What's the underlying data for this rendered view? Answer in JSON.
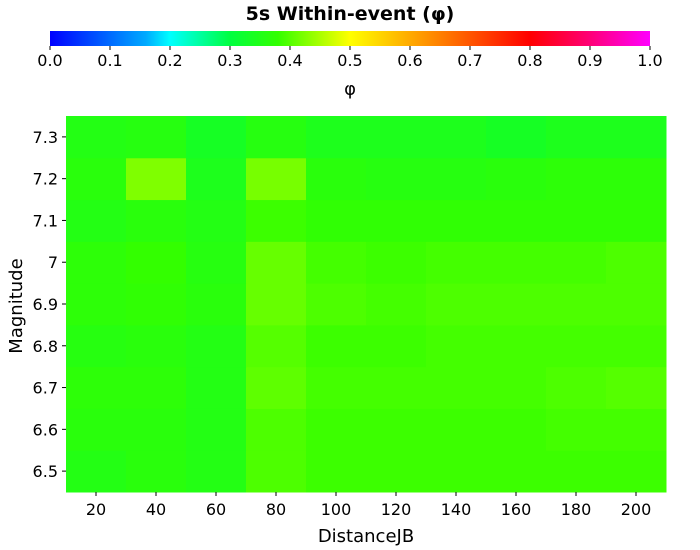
{
  "chart_data": {
    "type": "heatmap",
    "title": "5s Within-event (φ)",
    "xlabel": "DistanceJB",
    "ylabel": "Magnitude",
    "x_ticks": [
      "20",
      "40",
      "60",
      "80",
      "100",
      "120",
      "140",
      "160",
      "180",
      "200"
    ],
    "y_ticks": [
      "6.5",
      "6.6",
      "6.7",
      "6.8",
      "6.9",
      "7",
      "7.1",
      "7.2",
      "7.3"
    ],
    "x_range": [
      10,
      210
    ],
    "y_range": [
      6.45,
      7.35
    ],
    "colorbar": {
      "label": "φ",
      "range": [
        0.0,
        1.0
      ],
      "ticks": [
        "0.0",
        "0.1",
        "0.2",
        "0.3",
        "0.4",
        "0.5",
        "0.6",
        "0.7",
        "0.8",
        "0.9",
        "1.0"
      ],
      "colormap": "hsv-like: blue-cyan-green-yellow-red-magenta"
    },
    "x_centers": [
      20,
      40,
      60,
      80,
      100,
      120,
      140,
      160,
      180,
      200
    ],
    "y_centers": [
      6.5,
      6.6,
      6.7,
      6.8,
      6.9,
      7.0,
      7.1,
      7.2,
      7.3
    ],
    "values": [
      [
        0.355,
        0.365,
        0.355,
        0.395,
        0.385,
        0.385,
        0.385,
        0.385,
        0.385,
        0.385
      ],
      [
        0.365,
        0.365,
        0.355,
        0.395,
        0.385,
        0.385,
        0.385,
        0.385,
        0.39,
        0.39
      ],
      [
        0.37,
        0.37,
        0.355,
        0.405,
        0.39,
        0.39,
        0.39,
        0.39,
        0.395,
        0.4
      ],
      [
        0.36,
        0.365,
        0.355,
        0.4,
        0.385,
        0.385,
        0.39,
        0.39,
        0.39,
        0.39
      ],
      [
        0.37,
        0.375,
        0.365,
        0.41,
        0.395,
        0.39,
        0.395,
        0.395,
        0.395,
        0.395
      ],
      [
        0.37,
        0.38,
        0.36,
        0.41,
        0.39,
        0.385,
        0.39,
        0.39,
        0.39,
        0.395
      ],
      [
        0.355,
        0.365,
        0.355,
        0.385,
        0.375,
        0.375,
        0.375,
        0.375,
        0.375,
        0.375
      ],
      [
        0.365,
        0.425,
        0.345,
        0.42,
        0.365,
        0.36,
        0.36,
        0.365,
        0.37,
        0.37
      ],
      [
        0.355,
        0.36,
        0.335,
        0.36,
        0.345,
        0.345,
        0.345,
        0.335,
        0.345,
        0.345
      ]
    ]
  }
}
